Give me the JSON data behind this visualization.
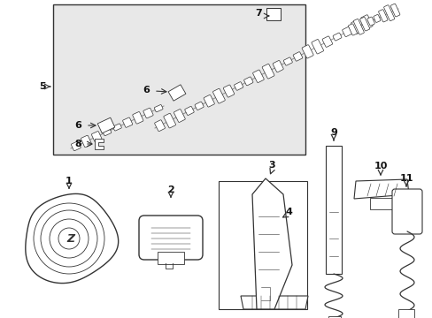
{
  "bg_color": "#ffffff",
  "box_bg": "#e8e8e8",
  "line_color": "#333333",
  "text_color": "#111111",
  "fig_width": 4.89,
  "fig_height": 3.6,
  "dpi": 100
}
